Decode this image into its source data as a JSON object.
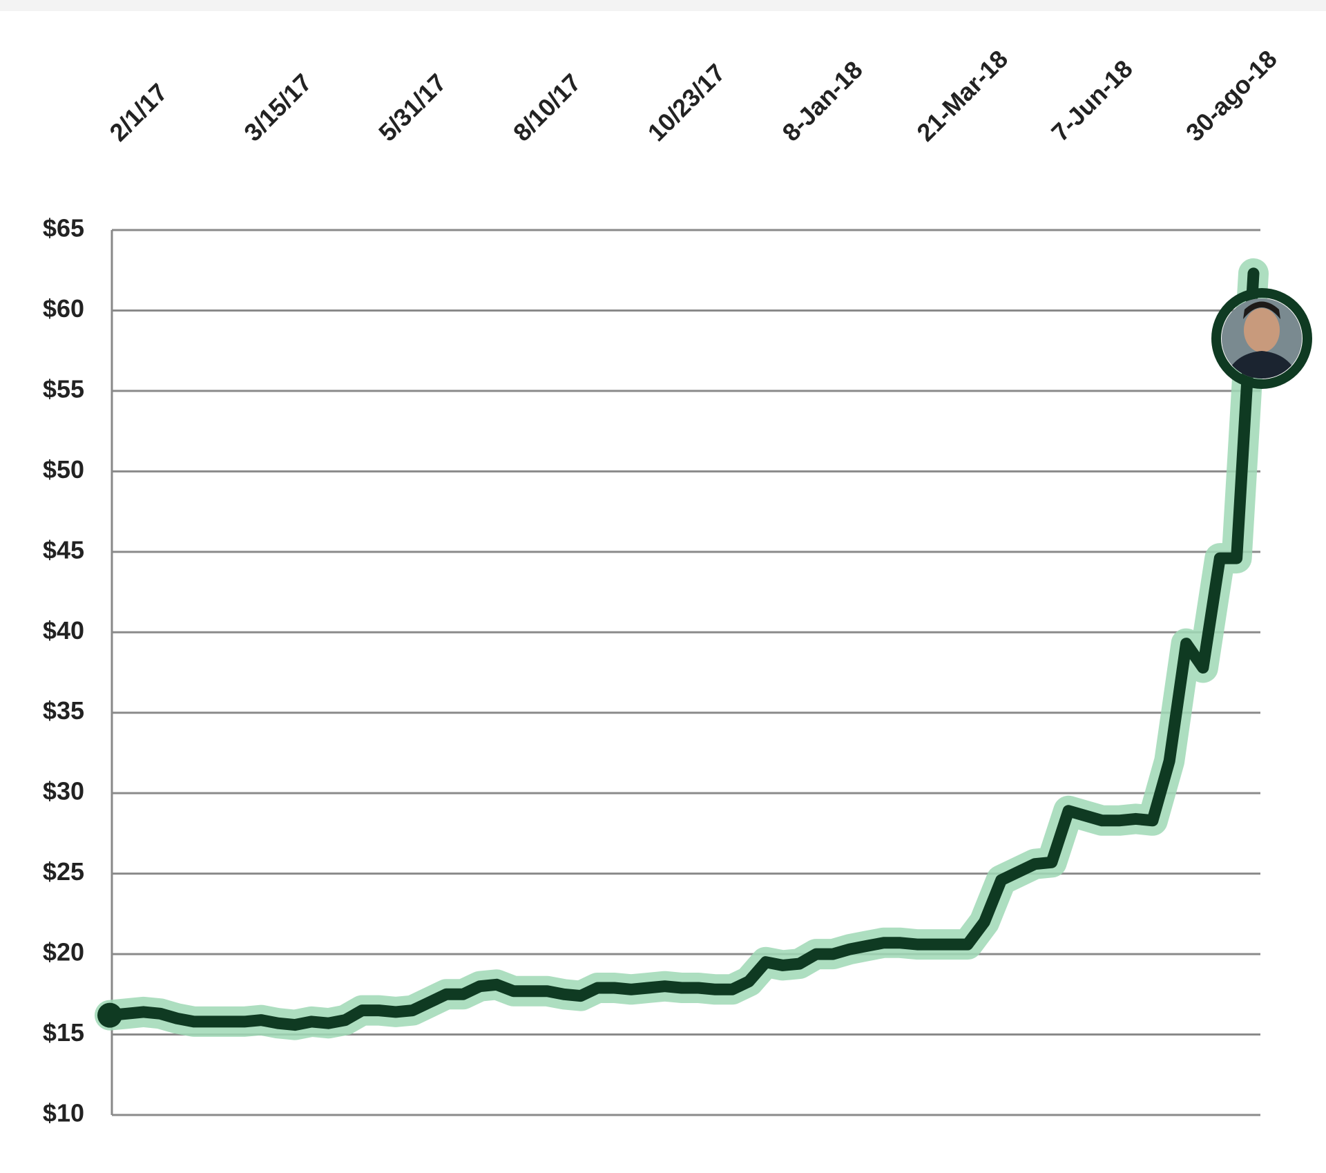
{
  "chart_data": {
    "type": "line",
    "categories": [
      "2/1/17",
      null,
      null,
      null,
      null,
      null,
      null,
      null,
      "3/15/17",
      null,
      null,
      null,
      null,
      null,
      null,
      null,
      "5/31/17",
      null,
      null,
      null,
      null,
      null,
      null,
      null,
      "8/10/17",
      null,
      null,
      null,
      null,
      null,
      null,
      null,
      "10/23/17",
      null,
      null,
      null,
      null,
      null,
      null,
      null,
      "8-Jan-18",
      null,
      null,
      null,
      null,
      null,
      null,
      null,
      "21-Mar-18",
      null,
      null,
      null,
      null,
      null,
      null,
      null,
      "7-Jun-18",
      null,
      null,
      null,
      null,
      null,
      null,
      null,
      "30-ago-18",
      null,
      null,
      null,
      null
    ],
    "values": [
      16.2,
      16.3,
      16.4,
      16.3,
      16.0,
      15.8,
      15.8,
      15.8,
      15.8,
      15.9,
      15.7,
      15.6,
      15.8,
      15.7,
      15.9,
      16.5,
      16.5,
      16.4,
      16.5,
      17.0,
      17.5,
      17.5,
      18.0,
      18.1,
      17.7,
      17.7,
      17.7,
      17.5,
      17.4,
      17.9,
      17.9,
      17.8,
      17.9,
      18.0,
      17.9,
      17.9,
      17.8,
      17.8,
      18.3,
      19.5,
      19.3,
      19.4,
      20.0,
      20.0,
      20.3,
      20.5,
      20.7,
      20.7,
      20.6,
      20.6,
      20.6,
      20.6,
      22.0,
      24.6,
      25.1,
      25.6,
      25.7,
      28.9,
      28.6,
      28.3,
      28.3,
      28.4,
      28.3,
      32.0,
      39.3,
      37.8,
      44.6,
      44.6,
      62.3
    ],
    "color": "#0f3a22",
    "ylim": [
      10,
      65
    ],
    "yticks": [
      {
        "value": 10,
        "label": "$10"
      },
      {
        "value": 15,
        "label": "$15"
      },
      {
        "value": 20,
        "label": "$20"
      },
      {
        "value": 25,
        "label": "$25"
      },
      {
        "value": 30,
        "label": "$30"
      },
      {
        "value": 35,
        "label": "$35"
      },
      {
        "value": 40,
        "label": "$40"
      },
      {
        "value": 45,
        "label": "$45"
      },
      {
        "value": 50,
        "label": "$50"
      },
      {
        "value": 55,
        "label": "$55"
      },
      {
        "value": 60,
        "label": "$60"
      },
      {
        "value": 65,
        "label": "$65"
      }
    ],
    "grid": true
  }
}
